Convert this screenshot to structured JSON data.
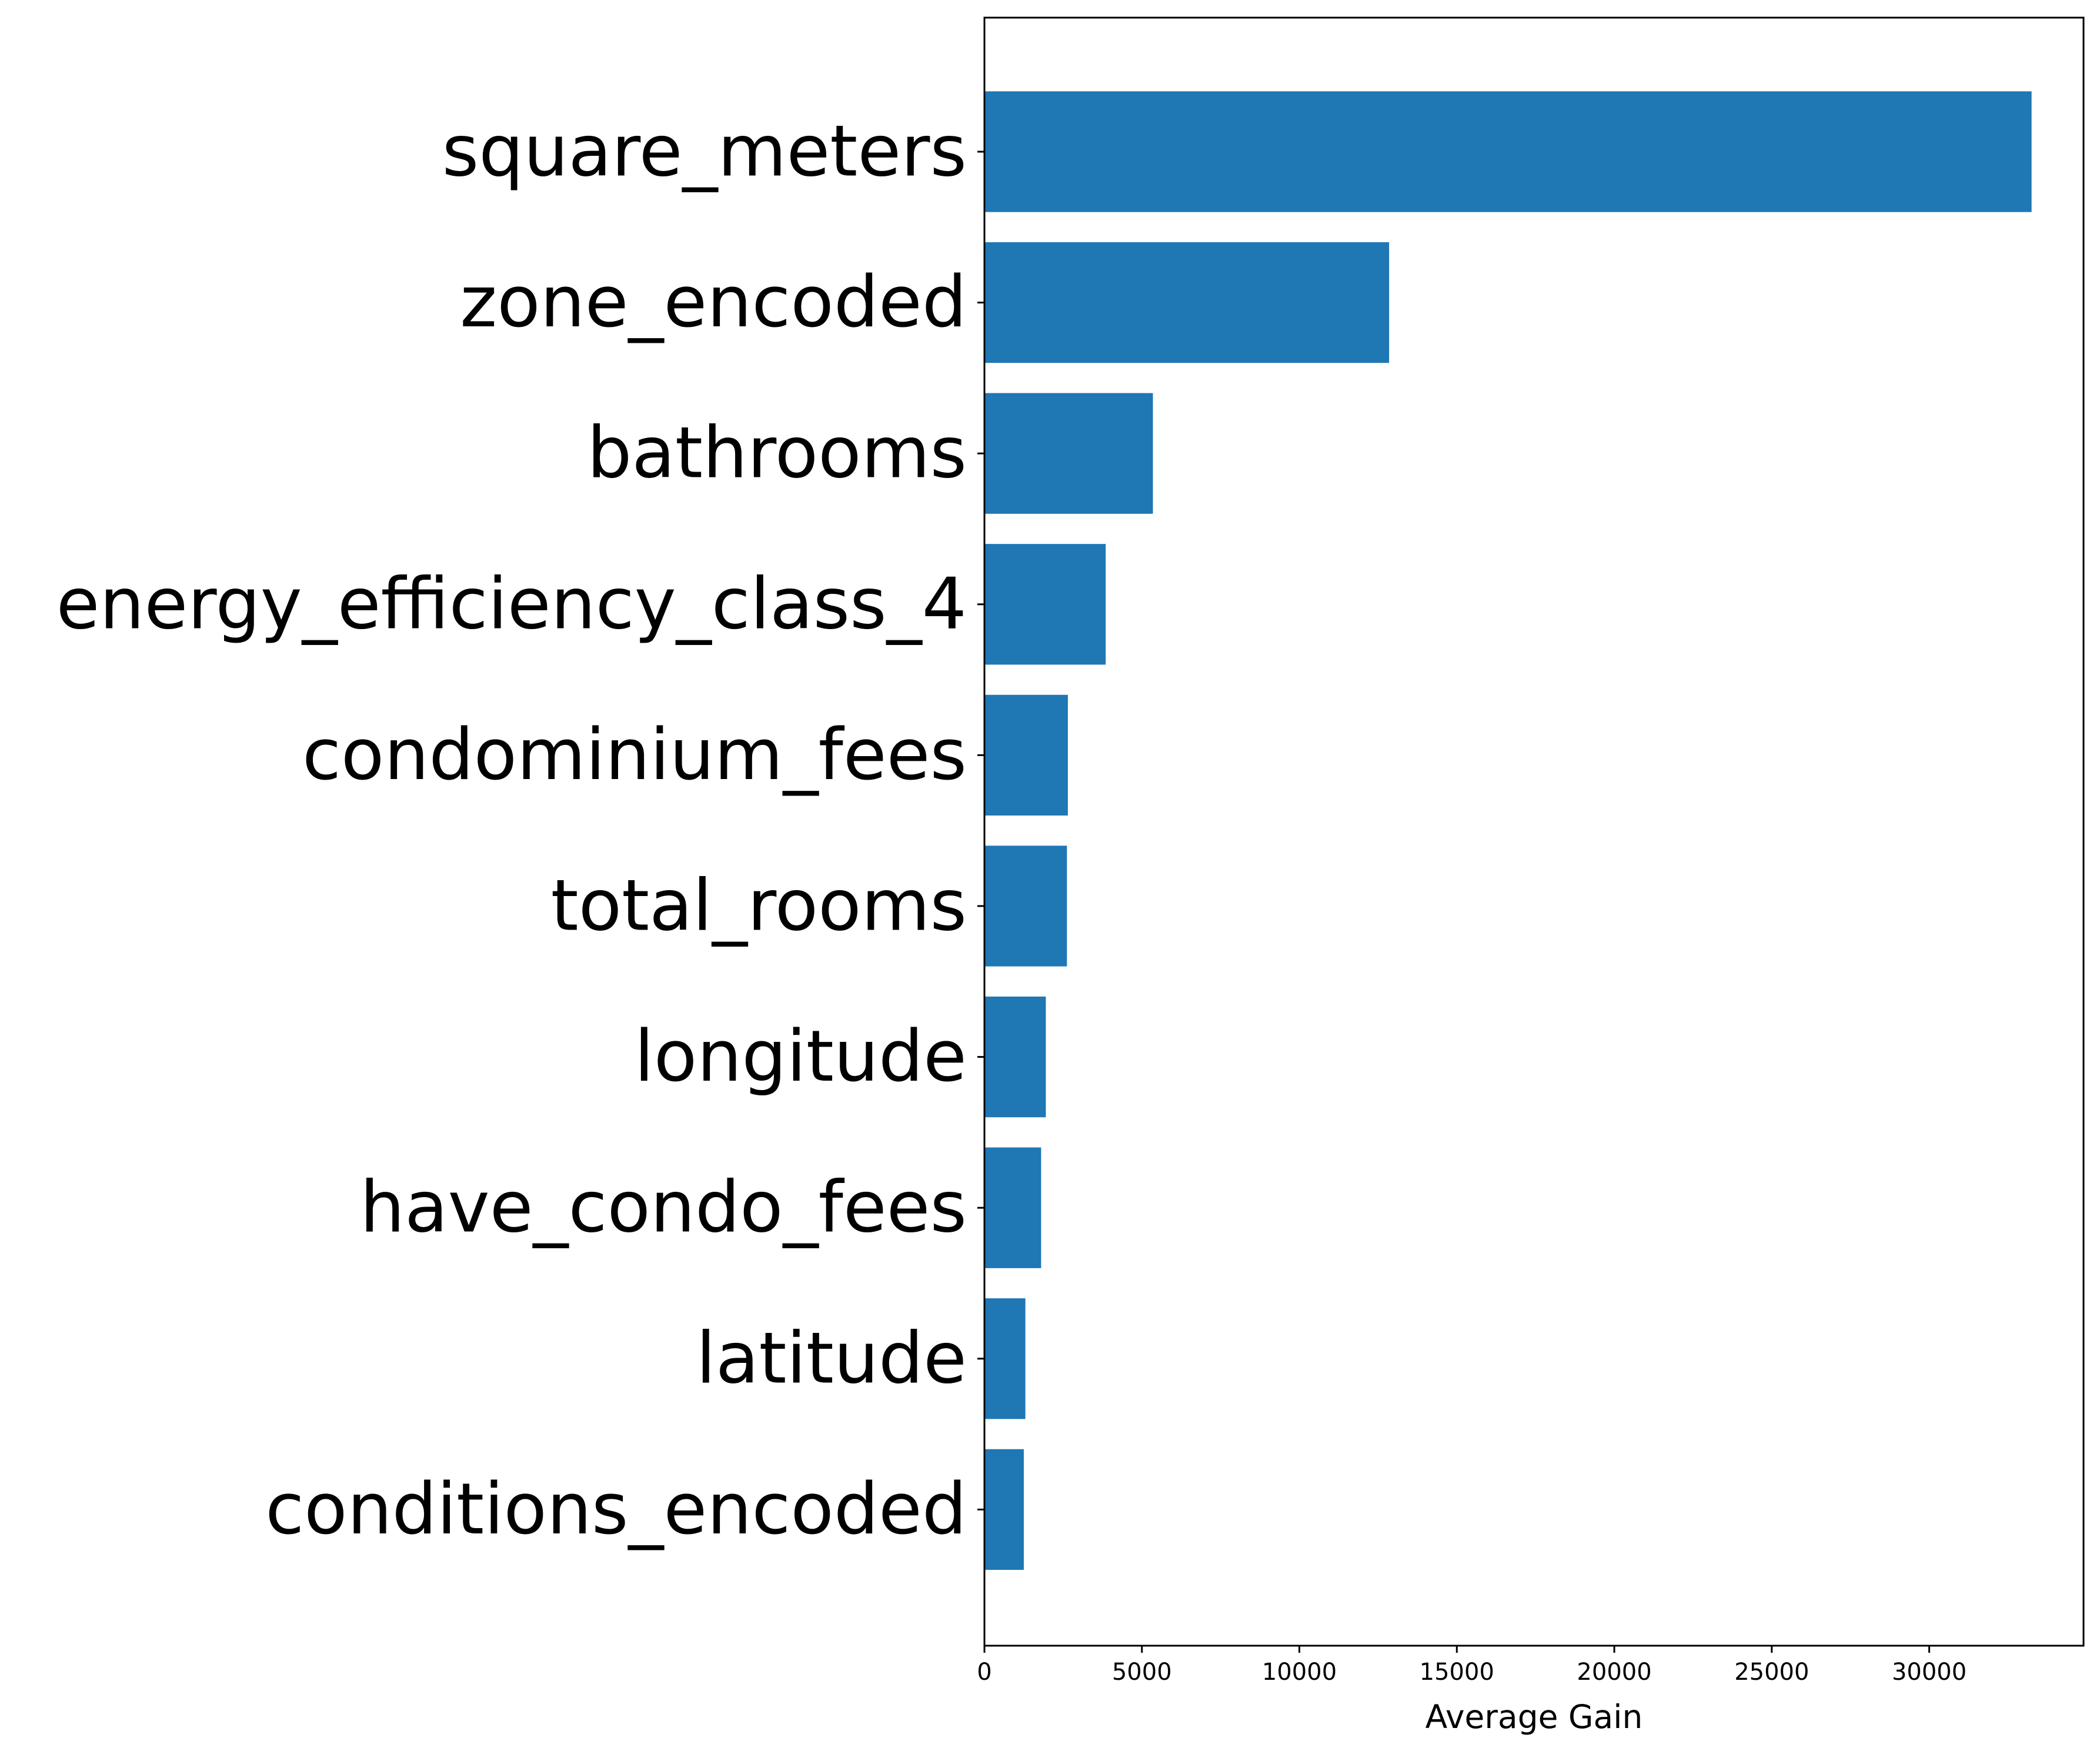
{
  "colors": {
    "bar": "#1f77b4",
    "axis": "#000000",
    "background": "#ffffff"
  },
  "chart_data": {
    "type": "bar",
    "orientation": "horizontal",
    "title": "",
    "xlabel": "Average Gain",
    "ylabel": "",
    "xlim": [
      0,
      34900
    ],
    "xticks": [
      0,
      5000,
      10000,
      15000,
      20000,
      25000,
      30000
    ],
    "grid": false,
    "categories": [
      "square_meters",
      "zone_encoded",
      "bathrooms",
      "energy_efficiency_class_4",
      "condominium_fees",
      "total_rooms",
      "longitude",
      "have_condo_fees",
      "latitude",
      "conditions_encoded"
    ],
    "values": [
      33250,
      12850,
      5350,
      3850,
      2650,
      2620,
      1950,
      1800,
      1300,
      1250
    ]
  }
}
